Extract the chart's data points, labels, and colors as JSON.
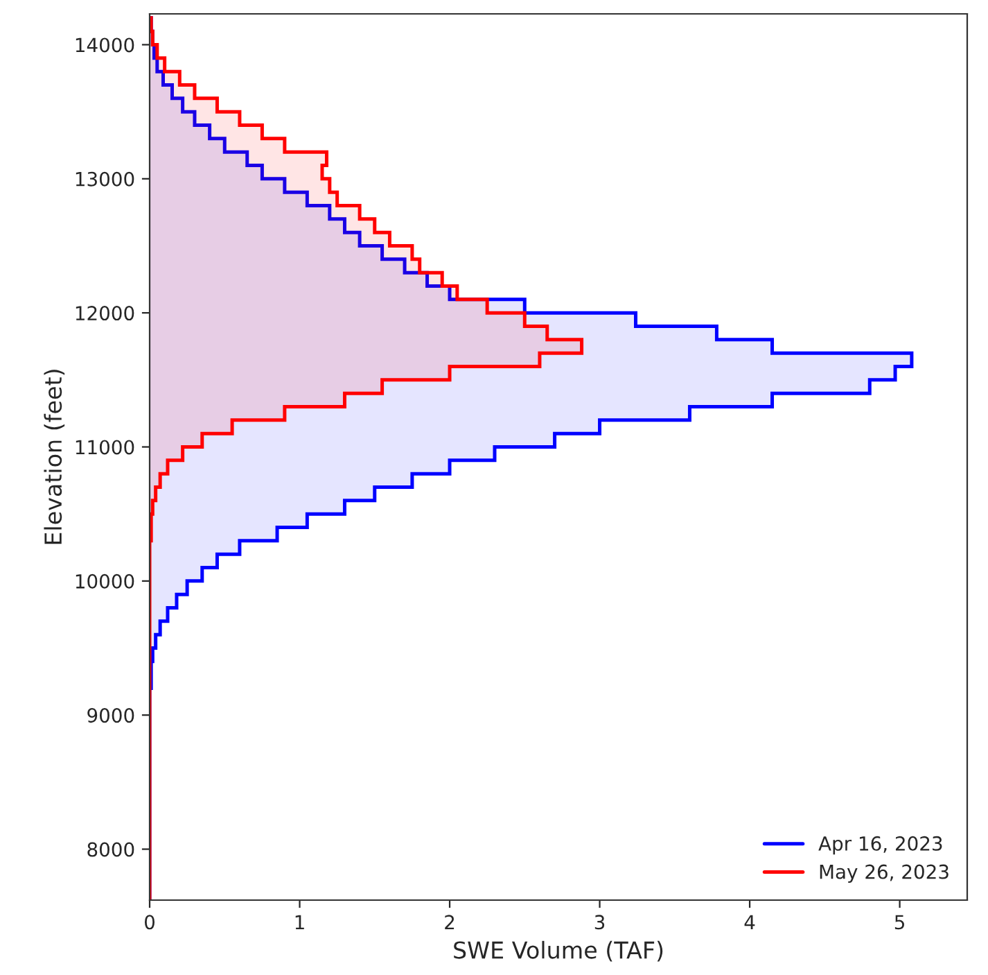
{
  "chart_data": {
    "type": "histogram",
    "orientation": "horizontal",
    "xlabel": "SWE Volume (TAF)",
    "ylabel": "Elevation (feet)",
    "bins": [
      7600,
      7700,
      7800,
      7900,
      8000,
      8100,
      8200,
      8300,
      8400,
      8500,
      8600,
      8700,
      8800,
      8900,
      9000,
      9100,
      9200,
      9300,
      9400,
      9500,
      9600,
      9700,
      9800,
      9900,
      10000,
      10100,
      10200,
      10300,
      10400,
      10500,
      10600,
      10700,
      10800,
      10900,
      11000,
      11100,
      11200,
      11300,
      11400,
      11500,
      11600,
      11700,
      11800,
      11900,
      12000,
      12100,
      12200,
      12300,
      12400,
      12500,
      12600,
      12700,
      12800,
      12900,
      13000,
      13100,
      13200,
      13300,
      13400,
      13500,
      13600,
      13700,
      13800,
      13900,
      14000,
      14100,
      14200
    ],
    "series": [
      {
        "name": "Apr 16, 2023",
        "color": "#0000ff",
        "values": [
          0,
          0,
          0,
          0,
          0,
          0,
          0,
          0,
          0,
          0,
          0,
          0,
          0,
          0,
          0,
          0,
          0.01,
          0.01,
          0.02,
          0.04,
          0.07,
          0.12,
          0.18,
          0.25,
          0.35,
          0.45,
          0.6,
          0.85,
          1.05,
          1.3,
          1.5,
          1.75,
          2.0,
          2.3,
          2.7,
          3.0,
          3.6,
          4.15,
          4.8,
          4.97,
          5.08,
          4.15,
          3.78,
          3.24,
          2.5,
          2.0,
          1.85,
          1.7,
          1.55,
          1.4,
          1.3,
          1.2,
          1.05,
          0.9,
          0.75,
          0.65,
          0.5,
          0.4,
          0.3,
          0.22,
          0.15,
          0.09,
          0.05,
          0.03,
          0.02,
          0.01
        ]
      },
      {
        "name": "May 26, 2023",
        "color": "#ff0000",
        "values": [
          0,
          0,
          0,
          0,
          0,
          0,
          0,
          0,
          0,
          0,
          0,
          0,
          0,
          0,
          0,
          0,
          0,
          0,
          0,
          0,
          0,
          0,
          0,
          0,
          0,
          0,
          0,
          0.01,
          0.01,
          0.02,
          0.04,
          0.07,
          0.12,
          0.22,
          0.35,
          0.55,
          0.9,
          1.3,
          1.55,
          2.0,
          2.6,
          2.88,
          2.65,
          2.5,
          2.25,
          2.05,
          1.95,
          1.8,
          1.75,
          1.6,
          1.5,
          1.4,
          1.25,
          1.2,
          1.15,
          1.18,
          0.9,
          0.75,
          0.6,
          0.45,
          0.3,
          0.2,
          0.1,
          0.05,
          0.02,
          0.01
        ]
      }
    ],
    "xlim": [
      0,
      5.45
    ],
    "xticks": [
      0,
      1,
      2,
      3,
      4,
      5
    ],
    "ylim": [
      7620,
      14230
    ],
    "yticks": [
      8000,
      9000,
      10000,
      11000,
      12000,
      13000,
      14000
    ],
    "legend": "bottom right",
    "grid": false
  }
}
